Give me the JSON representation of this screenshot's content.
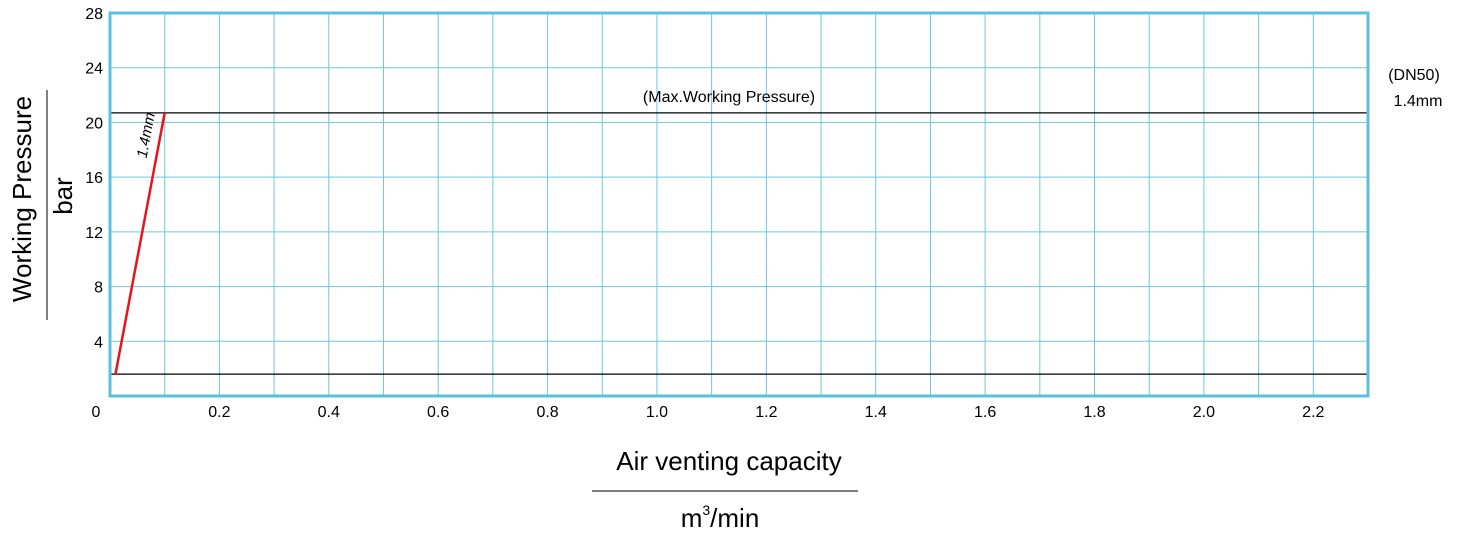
{
  "chart_data": {
    "type": "line",
    "xlabel": "Air venting capacity",
    "xunit_base": "m",
    "xunit_sup": "3",
    "xunit_rest": "/min",
    "ylabel": "Working Pressure",
    "yunit": "bar",
    "xlim": [
      0,
      2.3
    ],
    "ylim": [
      0,
      28
    ],
    "grid": true,
    "x_ticks": [
      0.2,
      0.4,
      0.6,
      0.8,
      1.0,
      1.2,
      1.4,
      1.6,
      1.8,
      2.0,
      2.2
    ],
    "x_tick_labels": [
      "0.2",
      "0.4",
      "0.6",
      "0.8",
      "1.0",
      "1.2",
      "1.4",
      "1.6",
      "1.8",
      "2.0",
      "2.2"
    ],
    "x_zero_label": "0",
    "y_ticks": [
      4,
      8,
      12,
      16,
      20,
      24,
      28
    ],
    "y_tick_labels": [
      "4",
      "8",
      "12",
      "16",
      "20",
      "24",
      "28"
    ],
    "series": [
      {
        "name": "1.4mm",
        "color": "#e8141c",
        "x": [
          0.01,
          0.1
        ],
        "y": [
          1.6,
          20.7
        ]
      }
    ],
    "reference_lines": [
      {
        "y": 20.7,
        "label": "(Max.Working Pressure)",
        "color": "#000000"
      },
      {
        "y": 1.6,
        "label": "",
        "color": "#000000"
      }
    ],
    "side_annotations": [
      "(DN50)",
      "1.4mm"
    ],
    "grid_color": "#6ec6dc",
    "frame_color": "#5bbfdd"
  }
}
